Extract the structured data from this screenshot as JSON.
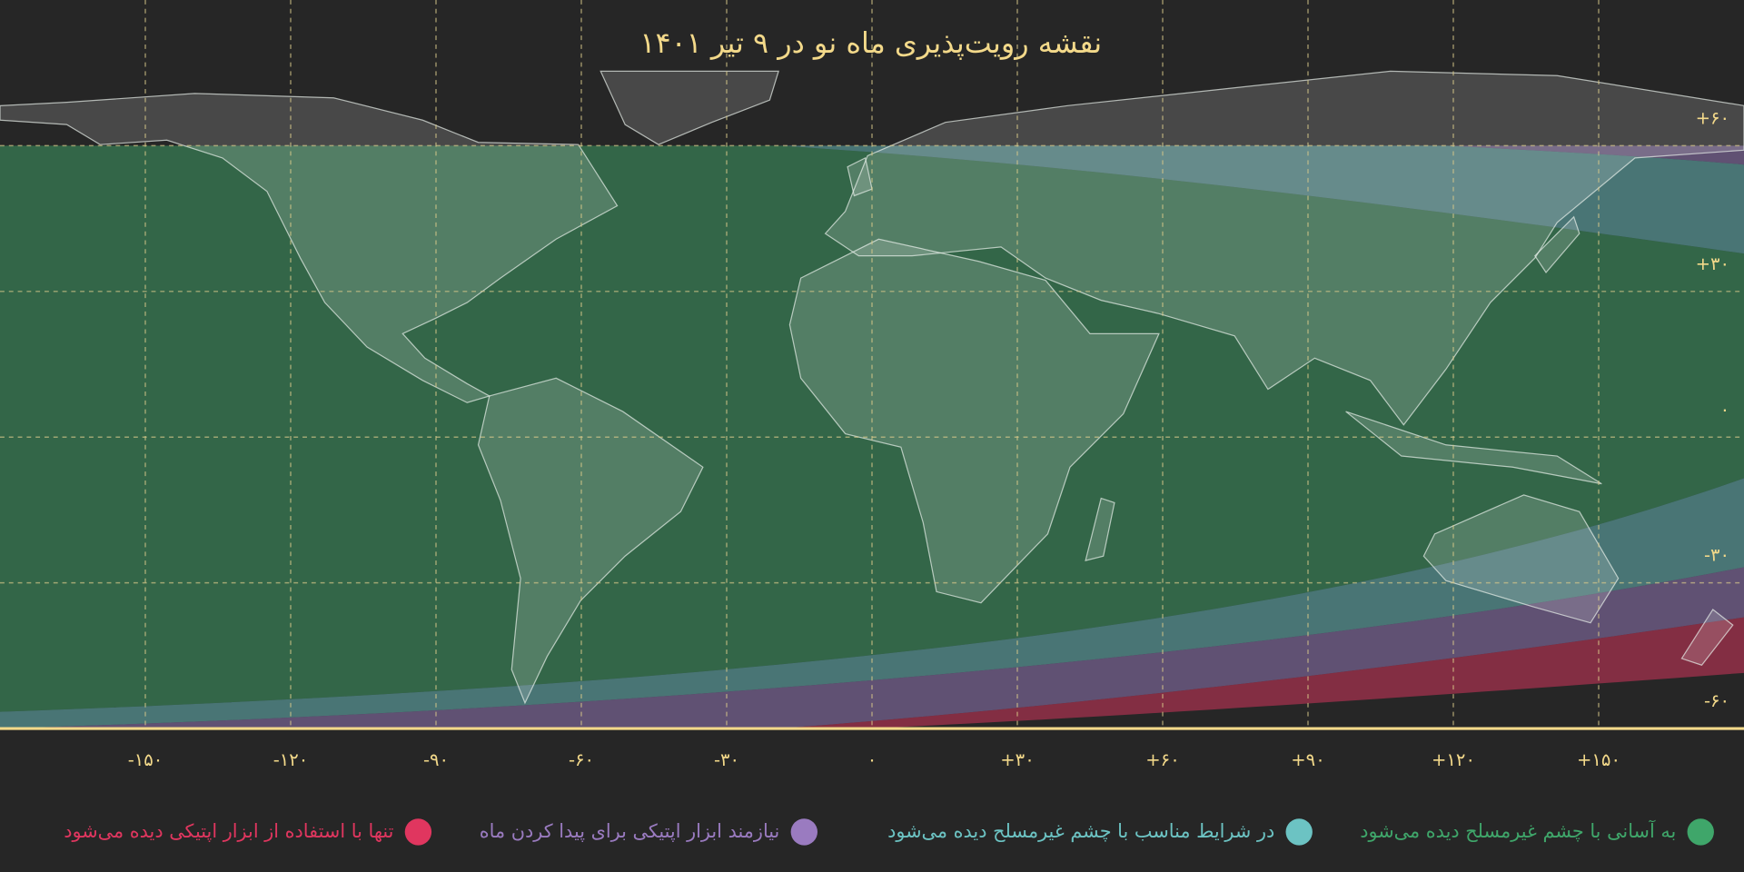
{
  "map": {
    "title": "نقشه رویت‌پذیری ماه نو در ۹ تیر ۱۴۰۱",
    "xlim": [
      -180,
      180
    ],
    "ylim": [
      -60,
      90
    ],
    "xticks": [
      {
        "value": -150,
        "label": "-۱۵۰"
      },
      {
        "value": -120,
        "label": "-۱۲۰"
      },
      {
        "value": -90,
        "label": "-۹۰"
      },
      {
        "value": -60,
        "label": "-۶۰"
      },
      {
        "value": -30,
        "label": "-۳۰"
      },
      {
        "value": 0,
        "label": "۰"
      },
      {
        "value": 30,
        "label": "+۳۰"
      },
      {
        "value": 60,
        "label": "+۶۰"
      },
      {
        "value": 90,
        "label": "+۹۰"
      },
      {
        "value": 120,
        "label": "+۱۲۰"
      },
      {
        "value": 150,
        "label": "+۱۵۰"
      }
    ],
    "yticks": [
      {
        "value": 60,
        "label": "+۶۰"
      },
      {
        "value": 30,
        "label": "+۳۰"
      },
      {
        "value": 0,
        "label": "۰"
      },
      {
        "value": -30,
        "label": "-۳۰"
      },
      {
        "value": -60,
        "label": "-۶۰"
      }
    ],
    "legend": [
      {
        "label": "به آسانی با چشم غیرمسلح دیده می‌شود",
        "color": "#3fa66a"
      },
      {
        "label": "در شرایط مناسب با چشم غیرمسلح دیده می‌شود",
        "color": "#6cc3c3"
      },
      {
        "label": "نیازمند ابزار اپتیکی برای پیدا کردن ماه",
        "color": "#9a7bc0"
      },
      {
        "label": "تنها با استفاده از ابزار اپتیکی دیده می‌شود",
        "color": "#e0365f"
      }
    ]
  }
}
